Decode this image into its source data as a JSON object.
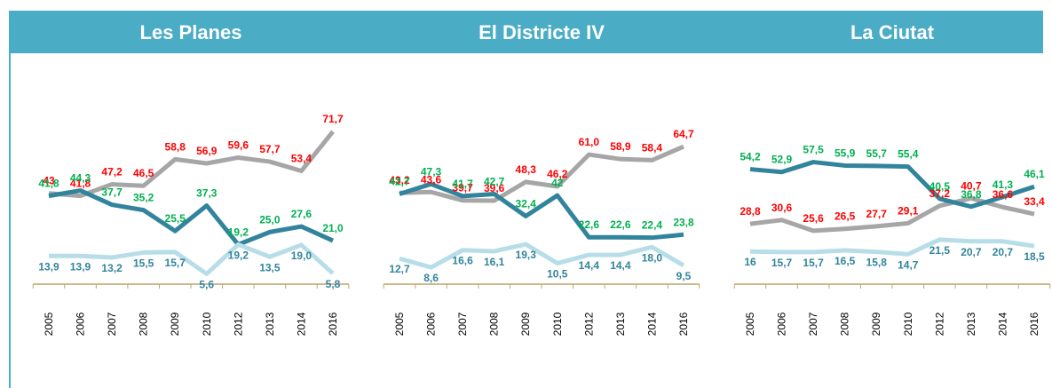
{
  "chart_data": [
    {
      "type": "line",
      "title": "Les Planes",
      "categories": [
        "2005",
        "2006",
        "2007",
        "2008",
        "2009",
        "2010",
        "2012",
        "2013",
        "2014",
        "2016"
      ],
      "ylim": [
        0,
        80
      ],
      "series": [
        {
          "color": "#a6a6a6",
          "label_color": "#ff0000",
          "values": [
            43,
            41.8,
            47.2,
            46.5,
            58.8,
            56.9,
            59.6,
            57.7,
            53.4,
            71.7
          ],
          "value_labels": [
            "43",
            "41,8",
            "47,2",
            "46,5",
            "58,8",
            "56,9",
            "59,6",
            "57,7",
            "53,4",
            "71,7"
          ]
        },
        {
          "color": "#31849b",
          "label_color": "#00b050",
          "values": [
            41.8,
            44.3,
            37.7,
            35.2,
            25.5,
            37.3,
            19.2,
            25.0,
            27.6,
            21.0
          ],
          "value_labels": [
            "41,8",
            "44,3",
            "37,7",
            "35,2",
            "25,5",
            "37,3",
            "19,2",
            "25,0",
            "27,6",
            "21,0"
          ]
        },
        {
          "color": "#b7dee8",
          "label_color": "#31849b",
          "values": [
            13.9,
            13.9,
            13.2,
            15.5,
            15.7,
            5.6,
            19.2,
            13.5,
            19.0,
            5.8
          ],
          "value_labels": [
            "13,9",
            "13,9",
            "13,2",
            "15,5",
            "15,7",
            "5,6",
            "19,2",
            "13,5",
            "19,0",
            "5,8"
          ]
        }
      ]
    },
    {
      "type": "line",
      "title": "El Districte IV",
      "categories": [
        "2005",
        "2006",
        "2007",
        "2008",
        "2009",
        "2010",
        "2012",
        "2013",
        "2014",
        "2016"
      ],
      "ylim": [
        0,
        80
      ],
      "series": [
        {
          "color": "#a6a6a6",
          "label_color": "#ff0000",
          "values": [
            43.2,
            43.6,
            39.7,
            39.6,
            48.3,
            46.2,
            61.0,
            58.9,
            58.4,
            64.7
          ],
          "value_labels": [
            "43,2",
            "43,6",
            "39,7",
            "39,6",
            "48,3",
            "46,2",
            "61,0",
            "58,9",
            "58,4",
            "64,7"
          ]
        },
        {
          "color": "#31849b",
          "label_color": "#00b050",
          "values": [
            42.7,
            47.3,
            41.7,
            42.7,
            32.4,
            42,
            22.6,
            22.6,
            22.4,
            23.8
          ],
          "value_labels": [
            "42,7",
            "47,3",
            "41,7",
            "42,7",
            "32,4",
            "42",
            "22,6",
            "22,6",
            "22,4",
            "23,8"
          ]
        },
        {
          "color": "#b7dee8",
          "label_color": "#31849b",
          "values": [
            12.7,
            8.6,
            16.6,
            16.1,
            19.3,
            10.5,
            14.4,
            14.4,
            18.0,
            9.5
          ],
          "value_labels": [
            "12,7",
            "8,6",
            "16,6",
            "16,1",
            "19,3",
            "10,5",
            "14,4",
            "14,4",
            "18,0",
            "9,5"
          ]
        }
      ]
    },
    {
      "type": "line",
      "title": "La Ciutat",
      "categories": [
        "2005",
        "2006",
        "2007",
        "2008",
        "2009",
        "2010",
        "2012",
        "2013",
        "2014",
        "2016"
      ],
      "ylim": [
        0,
        80
      ],
      "series": [
        {
          "color": "#a6a6a6",
          "label_color": "#ff0000",
          "values": [
            28.8,
            30.6,
            25.6,
            26.5,
            27.7,
            29.1,
            37.2,
            40.7,
            36.6,
            33.4
          ],
          "value_labels": [
            "28,8",
            "30,6",
            "25,6",
            "26,5",
            "27,7",
            "29,1",
            "37,2",
            "40,7",
            "36,6",
            "33,4"
          ]
        },
        {
          "color": "#31849b",
          "label_color": "#00b050",
          "values": [
            54.2,
            52.9,
            57.5,
            55.9,
            55.7,
            55.4,
            40.5,
            36.8,
            41.3,
            46.1
          ],
          "value_labels": [
            "54,2",
            "52,9",
            "57,5",
            "55,9",
            "55,7",
            "55,4",
            "40,5",
            "36,8",
            "41,3",
            "46,1"
          ]
        },
        {
          "color": "#b7dee8",
          "label_color": "#31849b",
          "values": [
            16,
            15.7,
            15.7,
            16.5,
            15.8,
            14.7,
            21.5,
            20.7,
            20.7,
            18.5
          ],
          "value_labels": [
            "16",
            "15,7",
            "15,7",
            "16,5",
            "15,8",
            "14,7",
            "21,5",
            "20,7",
            "20,7",
            "18,5"
          ]
        }
      ]
    }
  ]
}
